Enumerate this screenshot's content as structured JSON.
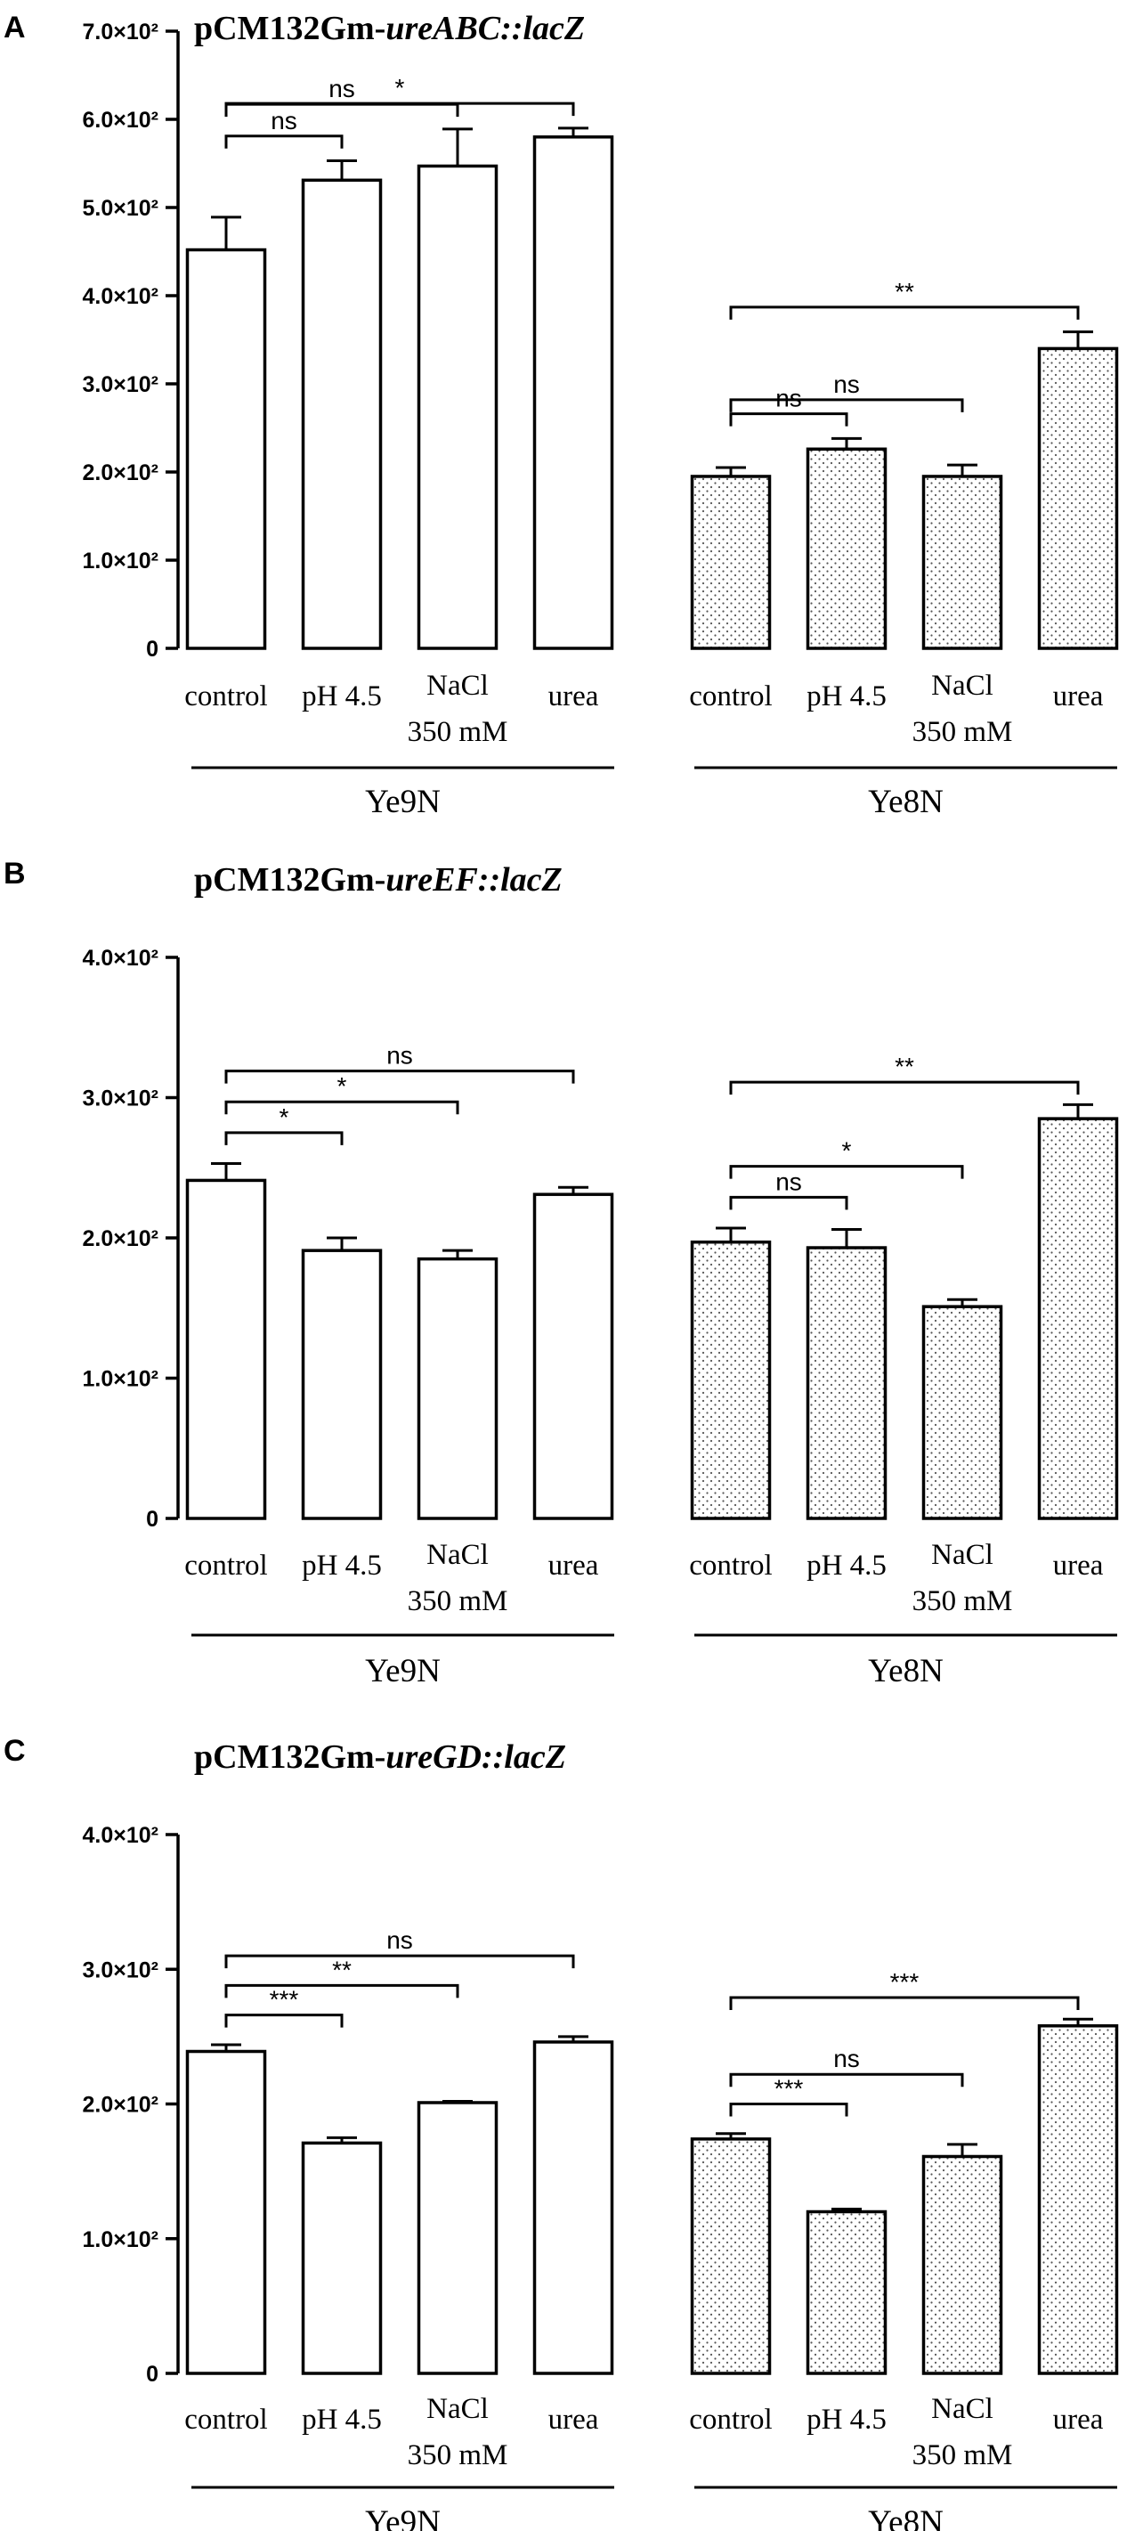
{
  "figure": {
    "panels": [
      {
        "letter": "A",
        "title_prefix": "pCM132Gm-",
        "title_gene": "ureABC::lacZ"
      },
      {
        "letter": "B",
        "title_prefix": "pCM132Gm-",
        "title_gene": "ureEF::lacZ"
      },
      {
        "letter": "C",
        "title_prefix": "pCM132Gm-",
        "title_gene": "ureGD::lacZ"
      }
    ],
    "colors": {
      "bar_ye9n": "#ffffff",
      "bar_ye8n_pattern_dots": "#555555",
      "ink": "#000000"
    }
  },
  "chart_data": [
    {
      "type": "bar",
      "title": "pCM132Gm-ureABC::lacZ",
      "groups": [
        "Ye9N",
        "Ye8N"
      ],
      "categories": [
        "control",
        "pH 4.5",
        "NaCl|350 mM",
        "urea"
      ],
      "series": [
        {
          "name": "Ye9N",
          "fill": "plain",
          "values": [
            452,
            531,
            547,
            580
          ],
          "errors": [
            37,
            22,
            42,
            10
          ]
        },
        {
          "name": "Ye8N",
          "fill": "dotted",
          "values": [
            195,
            226,
            195,
            340
          ],
          "errors": [
            10,
            12,
            13,
            19
          ]
        }
      ],
      "ylim": [
        0,
        700
      ],
      "yticks": [
        0,
        100,
        200,
        300,
        400,
        500,
        600,
        700
      ],
      "ytick_labels": [
        "0",
        "1.0×10²",
        "2.0×10²",
        "3.0×10²",
        "4.0×10²",
        "5.0×10²",
        "6.0×10²",
        "7.0×10²"
      ],
      "comparisons": [
        {
          "group": "Ye9N",
          "from": 0,
          "to": 1,
          "label": "ns",
          "level": 0
        },
        {
          "group": "Ye9N",
          "from": 0,
          "to": 2,
          "label": "ns",
          "level": 1
        },
        {
          "group": "Ye9N",
          "from": 0,
          "to": 3,
          "label": "*",
          "level": 2
        },
        {
          "group": "Ye8N",
          "from": 0,
          "to": 1,
          "label": "ns",
          "level": 0
        },
        {
          "group": "Ye8N",
          "from": 0,
          "to": 2,
          "label": "ns",
          "level": 1
        },
        {
          "group": "Ye8N",
          "from": 0,
          "to": 3,
          "label": "**",
          "level": 2
        }
      ]
    },
    {
      "type": "bar",
      "title": "pCM132Gm-ureEF::lacZ",
      "groups": [
        "Ye9N",
        "Ye8N"
      ],
      "categories": [
        "control",
        "pH 4.5",
        "NaCl|350 mM",
        "urea"
      ],
      "series": [
        {
          "name": "Ye9N",
          "fill": "plain",
          "values": [
            241,
            191,
            185,
            231
          ],
          "errors": [
            12,
            9,
            6,
            5
          ]
        },
        {
          "name": "Ye8N",
          "fill": "dotted",
          "values": [
            197,
            193,
            151,
            285
          ],
          "errors": [
            10,
            13,
            5,
            10
          ]
        }
      ],
      "ylim": [
        0,
        400
      ],
      "yticks": [
        0,
        100,
        200,
        300,
        400
      ],
      "ytick_labels": [
        "0",
        "1.0×10²",
        "2.0×10²",
        "3.0×10²",
        "4.0×10²"
      ],
      "comparisons": [
        {
          "group": "Ye9N",
          "from": 0,
          "to": 1,
          "label": "*",
          "level": 0
        },
        {
          "group": "Ye9N",
          "from": 0,
          "to": 2,
          "label": "*",
          "level": 1
        },
        {
          "group": "Ye9N",
          "from": 0,
          "to": 3,
          "label": "ns",
          "level": 2
        },
        {
          "group": "Ye8N",
          "from": 0,
          "to": 1,
          "label": "ns",
          "level": 0
        },
        {
          "group": "Ye8N",
          "from": 0,
          "to": 2,
          "label": "*",
          "level": 1
        },
        {
          "group": "Ye8N",
          "from": 0,
          "to": 3,
          "label": "**",
          "level": 2
        }
      ]
    },
    {
      "type": "bar",
      "title": "pCM132Gm-ureGD::lacZ",
      "groups": [
        "Ye9N",
        "Ye8N"
      ],
      "categories": [
        "control",
        "pH 4.5",
        "NaCl|350 mM",
        "urea"
      ],
      "series": [
        {
          "name": "Ye9N",
          "fill": "plain",
          "values": [
            239,
            171,
            201,
            246
          ],
          "errors": [
            5,
            4,
            1,
            4
          ]
        },
        {
          "name": "Ye8N",
          "fill": "dotted",
          "values": [
            174,
            120,
            161,
            258
          ],
          "errors": [
            4,
            2,
            9,
            5
          ]
        }
      ],
      "ylim": [
        0,
        400
      ],
      "yticks": [
        0,
        100,
        200,
        300,
        400
      ],
      "ytick_labels": [
        "0",
        "1.0×10²",
        "2.0×10²",
        "3.0×10²",
        "4.0×10²"
      ],
      "comparisons": [
        {
          "group": "Ye9N",
          "from": 0,
          "to": 1,
          "label": "***",
          "level": 0
        },
        {
          "group": "Ye9N",
          "from": 0,
          "to": 2,
          "label": "**",
          "level": 1
        },
        {
          "group": "Ye9N",
          "from": 0,
          "to": 3,
          "label": "ns",
          "level": 2
        },
        {
          "group": "Ye8N",
          "from": 0,
          "to": 1,
          "label": "***",
          "level": 0
        },
        {
          "group": "Ye8N",
          "from": 0,
          "to": 2,
          "label": "ns",
          "level": 1
        },
        {
          "group": "Ye8N",
          "from": 0,
          "to": 3,
          "label": "***",
          "level": 2
        }
      ]
    }
  ]
}
